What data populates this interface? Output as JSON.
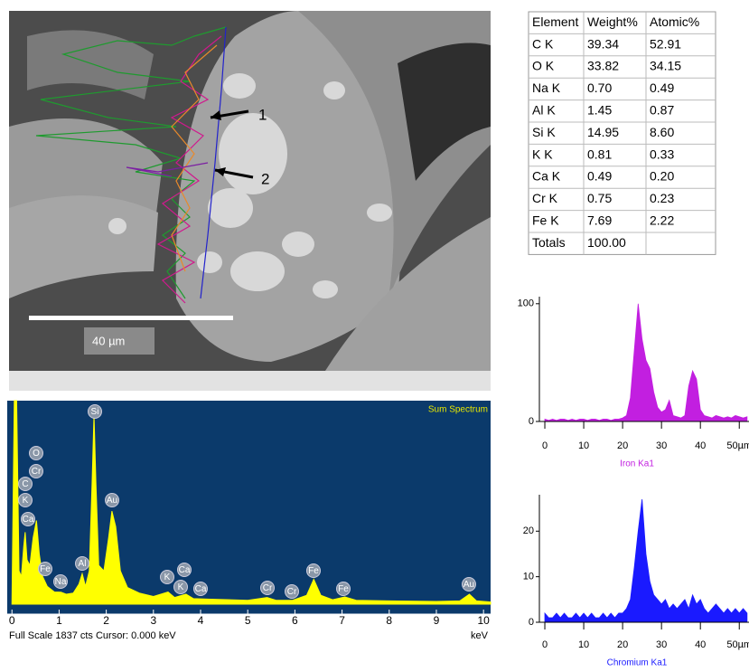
{
  "image": {
    "scale_bar": "40 µm",
    "markers": [
      "1",
      "2"
    ]
  },
  "table": {
    "header": [
      "Element",
      "Weight%",
      "Atomic%"
    ],
    "rows": [
      [
        "C K",
        "39.34",
        "52.91"
      ],
      [
        "O K",
        "33.82",
        "34.15"
      ],
      [
        "Na K",
        "0.70",
        "0.49"
      ],
      [
        "Al K",
        "1.45",
        "0.87"
      ],
      [
        "Si K",
        "14.95",
        "8.60"
      ],
      [
        "K K",
        "0.81",
        "0.33"
      ],
      [
        "Ca K",
        "0.49",
        "0.20"
      ],
      [
        "Cr K",
        "0.75",
        "0.23"
      ],
      [
        "Fe K",
        "7.69",
        "2.22"
      ],
      [
        "Totals",
        "100.00"
      ]
    ]
  },
  "chart_data": [
    {
      "type": "area",
      "title": "Sum Spectrum",
      "footer": "Full Scale 1837 cts  Cursor: 0.000 keV",
      "x_label": "keV",
      "x": [
        0,
        0.05,
        0.1,
        0.15,
        0.2,
        0.25,
        0.28,
        0.32,
        0.38,
        0.45,
        0.52,
        0.58,
        0.65,
        0.75,
        0.9,
        1.04,
        1.15,
        1.3,
        1.42,
        1.49,
        1.56,
        1.64,
        1.7,
        1.74,
        1.78,
        1.84,
        1.95,
        2.05,
        2.12,
        2.2,
        2.3,
        2.45,
        2.7,
        3.0,
        3.31,
        3.45,
        3.69,
        3.85,
        4.2,
        5.0,
        5.41,
        5.6,
        5.95,
        6.25,
        6.4,
        6.55,
        6.8,
        7.06,
        7.3,
        8.0,
        9.0,
        9.5,
        9.7,
        9.85,
        10.15
      ],
      "values": [
        0,
        1837,
        1837,
        300,
        250,
        520,
        650,
        400,
        350,
        600,
        755,
        450,
        250,
        160,
        110,
        108,
        90,
        100,
        180,
        275,
        160,
        300,
        1100,
        1712,
        1100,
        350,
        300,
        600,
        840,
        700,
        300,
        150,
        100,
        70,
        110,
        60,
        90,
        50,
        45,
        35,
        60,
        35,
        35,
        80,
        225,
        80,
        40,
        65,
        35,
        30,
        25,
        30,
        90,
        30,
        20
      ],
      "xlim": [
        -0.1,
        10.15
      ],
      "ylim": [
        0,
        1837
      ],
      "xticks": [
        0,
        1,
        2,
        3,
        4,
        5,
        6,
        7,
        8,
        9,
        10
      ],
      "color": "#ffff00",
      "background": "#0b3a6b",
      "peak_labels": [
        "Si",
        "O",
        "Cr",
        "C",
        "K",
        "Ca",
        "Au",
        "Fe",
        "Na",
        "Al",
        "K",
        "Ca",
        "K",
        "Ca",
        "Cr",
        "Cr",
        "Fe",
        "Fe",
        "Au"
      ]
    },
    {
      "type": "linescan",
      "x": [
        0,
        1,
        2,
        3,
        4,
        5,
        6,
        7,
        8,
        9,
        10,
        11,
        12,
        13,
        14,
        15,
        16,
        17,
        18,
        19,
        20,
        21,
        22,
        23,
        24,
        25,
        26,
        27,
        28,
        29,
        30,
        31,
        32,
        33,
        34,
        35,
        36,
        37,
        38,
        39,
        40,
        41,
        42,
        43,
        44,
        45,
        46,
        47,
        48,
        49,
        50,
        51,
        52
      ],
      "series": [
        {
          "name": "Iron Ka1",
          "color": "#c21fe0",
          "values": [
            2,
            1,
            2,
            1,
            2,
            2,
            1,
            2,
            1,
            2,
            2,
            1,
            2,
            2,
            1,
            2,
            2,
            1,
            2,
            2,
            3,
            5,
            20,
            60,
            100,
            70,
            52,
            45,
            25,
            12,
            8,
            10,
            18,
            5,
            4,
            3,
            5,
            30,
            43,
            36,
            10,
            5,
            4,
            3,
            5,
            4,
            3,
            4,
            3,
            5,
            4,
            3,
            4
          ]
        }
      ],
      "xlim": [
        -1.4,
        52.5
      ],
      "ylim": [
        0,
        106
      ],
      "yticks": [
        0,
        100
      ],
      "xticks": [
        0,
        10,
        20,
        30,
        40,
        {
          "value": 50,
          "label": "50µm"
        }
      ]
    },
    {
      "type": "linescan",
      "x": [
        0,
        1,
        2,
        3,
        4,
        5,
        6,
        7,
        8,
        9,
        10,
        11,
        12,
        13,
        14,
        15,
        16,
        17,
        18,
        19,
        20,
        21,
        22,
        23,
        24,
        25,
        26,
        27,
        28,
        29,
        30,
        31,
        32,
        33,
        34,
        35,
        36,
        37,
        38,
        39,
        40,
        41,
        42,
        43,
        44,
        45,
        46,
        47,
        48,
        49,
        50,
        51,
        52
      ],
      "series": [
        {
          "name": "Chromium Ka1",
          "color": "#1a1aff",
          "values": [
            2,
            1,
            1,
            2,
            1,
            2,
            1,
            1,
            2,
            1,
            2,
            1,
            2,
            1,
            1,
            2,
            1,
            2,
            1,
            2,
            2,
            3,
            5,
            12,
            20,
            27,
            15,
            9,
            6,
            5,
            4,
            5,
            3,
            4,
            3,
            4,
            5,
            3,
            6,
            4,
            5,
            3,
            2,
            3,
            4,
            3,
            2,
            3,
            2,
            3,
            2,
            3,
            2
          ]
        }
      ],
      "xlim": [
        -1.4,
        52.5
      ],
      "ylim": [
        0,
        28
      ],
      "yticks": [
        0,
        10,
        20
      ],
      "xticks": [
        0,
        10,
        20,
        30,
        40,
        {
          "value": 50,
          "label": "50µm"
        }
      ]
    }
  ]
}
